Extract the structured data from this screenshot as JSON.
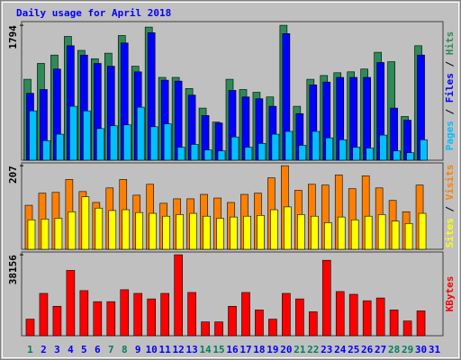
{
  "title": "Daily usage for April 2018",
  "legend_separator": " / ",
  "chart_data": [
    {
      "type": "bar",
      "ylim": [
        0,
        1843
      ],
      "yticks": [
        1794
      ],
      "series": [
        {
          "name": "Hits",
          "color": "#2e8b57",
          "values": [
            1076,
            1287,
            1398,
            1646,
            1460,
            1349,
            1423,
            1658,
            1250,
            1770,
            1101,
            1101,
            953,
            693,
            507,
            1076,
            940,
            903,
            841,
            1794,
            717,
            1076,
            1126,
            1163,
            1175,
            1212,
            1435,
            1310,
            581,
            1522,
            null
          ]
        },
        {
          "name": "Files",
          "color": "#0000ff",
          "values": [
            890,
            940,
            1212,
            1522,
            1398,
            1287,
            1250,
            1559,
            1175,
            1695,
            1064,
            1052,
            866,
            594,
            495,
            928,
            841,
            817,
            717,
            1683,
            619,
            1002,
            1039,
            1101,
            1101,
            1101,
            1299,
            693,
            532,
            1398,
            null
          ]
        },
        {
          "name": "Pages",
          "color": "#00c0ff",
          "values": [
            656,
            260,
            346,
            717,
            656,
            421,
            458,
            470,
            705,
            445,
            483,
            173,
            210,
            136,
            124,
            309,
            173,
            223,
            346,
            383,
            198,
            383,
            297,
            272,
            173,
            161,
            334,
            124,
            99,
            272,
            null
          ]
        }
      ]
    },
    {
      "type": "bar",
      "ylim": [
        0,
        214
      ],
      "yticks": [
        207
      ],
      "series": [
        {
          "name": "Visits",
          "color": "#ff8000",
          "values": [
            109,
            139,
            141,
            173,
            143,
            116,
            152,
            173,
            134,
            161,
            114,
            125,
            125,
            136,
            127,
            116,
            136,
            139,
            177,
            207,
            146,
            161,
            159,
            184,
            150,
            182,
            152,
            121,
            93,
            159,
            null
          ]
        },
        {
          "name": "Sites",
          "color": "#ffff00",
          "values": [
            73,
            75,
            77,
            93,
            130,
            102,
            96,
            98,
            91,
            89,
            82,
            86,
            89,
            82,
            77,
            80,
            82,
            84,
            98,
            105,
            86,
            82,
            66,
            80,
            73,
            82,
            86,
            70,
            64,
            89,
            null
          ]
        }
      ]
    },
    {
      "type": "bar",
      "ylim": [
        0,
        39457
      ],
      "yticks": [
        38156
      ],
      "categories": [
        "1",
        "2",
        "3",
        "4",
        "5",
        "6",
        "7",
        "8",
        "9",
        "10",
        "11",
        "12",
        "13",
        "14",
        "15",
        "16",
        "17",
        "18",
        "19",
        "20",
        "21",
        "22",
        "23",
        "24",
        "25",
        "26",
        "27",
        "28",
        "29",
        "30",
        "31"
      ],
      "label_colors": [
        "#00805c",
        "#0000ff",
        "#0000ff",
        "#0000ff",
        "#0000ff",
        "#0000ff",
        "#00805c",
        "#00805c",
        "#0000ff",
        "#0000ff",
        "#0000ff",
        "#0000ff",
        "#0000ff",
        "#00805c",
        "#00805c",
        "#0000ff",
        "#0000ff",
        "#0000ff",
        "#0000ff",
        "#0000ff",
        "#00805c",
        "#00805c",
        "#0000ff",
        "#0000ff",
        "#0000ff",
        "#0000ff",
        "#0000ff",
        "#00805c",
        "#00805c",
        "#0000ff",
        "#0000ff"
      ],
      "series": [
        {
          "name": "KBytes",
          "color": "#ff0000",
          "values": [
            7805,
            19945,
            13875,
            30785,
            21245,
            16043,
            16043,
            21680,
            19945,
            17344,
            19945,
            38156,
            20379,
            6504,
            6504,
            13875,
            20379,
            12141,
            7805,
            19945,
            17344,
            11273,
            35555,
            20812,
            19512,
            16476,
            17777,
            12141,
            6937,
            11707,
            null
          ]
        }
      ]
    }
  ]
}
